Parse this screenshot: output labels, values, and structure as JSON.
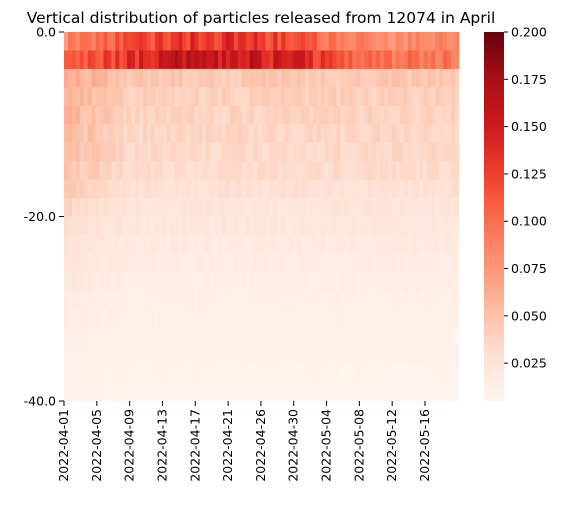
{
  "chart_data": {
    "type": "heatmap",
    "title": "Vertical distribution of particles released from 12074 in April",
    "xlabel": "",
    "ylabel": "",
    "x_tick_labels": [
      "2022-04-01",
      "2022-04-05",
      "2022-04-09",
      "2022-04-13",
      "2022-04-17",
      "2022-04-21",
      "2022-04-26",
      "2022-04-30",
      "2022-05-04",
      "2022-05-08",
      "2022-05-12",
      "2022-05-16"
    ],
    "y_tick_labels": [
      "0.0",
      "-20.0",
      "-40.0"
    ],
    "depth_range": [
      0.0,
      -40.0
    ],
    "date_range": [
      "2022-04-01",
      "2022-05-20"
    ],
    "colorbar": {
      "colormap": "Reds",
      "range": [
        0.005,
        0.2
      ],
      "tick_labels": [
        "0.025",
        "0.050",
        "0.075",
        "0.100",
        "0.125",
        "0.150",
        "0.175",
        "0.200"
      ]
    },
    "depth_profile": [
      {
        "depth": 0,
        "value": 0.11
      },
      {
        "depth": -2,
        "value": 0.13
      },
      {
        "depth": -4,
        "value": 0.045
      },
      {
        "depth": -6,
        "value": 0.04
      },
      {
        "depth": -8,
        "value": 0.038
      },
      {
        "depth": -10,
        "value": 0.036
      },
      {
        "depth": -12,
        "value": 0.034
      },
      {
        "depth": -14,
        "value": 0.032
      },
      {
        "depth": -16,
        "value": 0.028
      },
      {
        "depth": -18,
        "value": 0.024
      },
      {
        "depth": -20,
        "value": 0.021
      },
      {
        "depth": -22,
        "value": 0.018
      },
      {
        "depth": -24,
        "value": 0.016
      },
      {
        "depth": -26,
        "value": 0.014
      },
      {
        "depth": -28,
        "value": 0.012
      },
      {
        "depth": -30,
        "value": 0.011
      },
      {
        "depth": -32,
        "value": 0.009
      },
      {
        "depth": -34,
        "value": 0.008
      },
      {
        "depth": -36,
        "value": 0.007
      },
      {
        "depth": -38,
        "value": 0.006
      },
      {
        "depth": -40,
        "value": 0.006
      }
    ],
    "grid": false,
    "legend": "colorbar-right"
  }
}
